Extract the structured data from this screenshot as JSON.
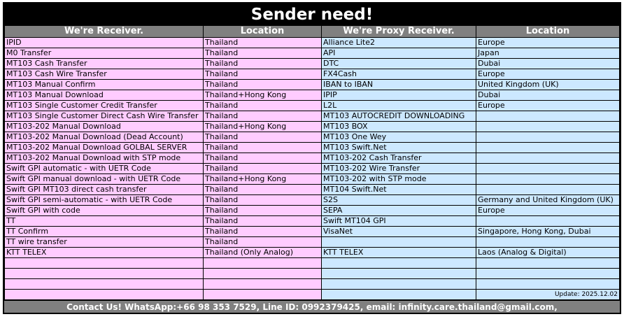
{
  "title": "Sender need!",
  "headers": [
    "We're Receiver.",
    "Location",
    "We're Proxy Receiver.",
    "Location"
  ],
  "rows": [
    [
      "IPID",
      "Thailand",
      "Alliance Lite2",
      "Europe"
    ],
    [
      "M0 Transfer",
      "Thailand",
      "API",
      "Japan"
    ],
    [
      "MT103 Cash Transfer",
      "Thailand",
      "DTC",
      "Dubai"
    ],
    [
      "MT103 Cash Wire Transfer",
      "Thailand",
      "FX4Cash",
      "Europe"
    ],
    [
      "MT103 Manual Confirm",
      "Thailand",
      "IBAN to IBAN",
      "United Kingdom (UK)"
    ],
    [
      "MT103 Manual Download",
      "Thailand+Hong Kong",
      "IPIP",
      "Dubai"
    ],
    [
      "MT103 Single Customer Credit Transfer",
      "Thailand",
      "L2L",
      "Europe"
    ],
    [
      "MT103 Single Customer Direct Cash Wire Transfer",
      "Thailand",
      "MT103 AUTOCREDIT DOWNLOADING",
      ""
    ],
    [
      "MT103-202 Manual Download",
      "Thailand+Hong Kong",
      "MT103 BOX",
      ""
    ],
    [
      "MT103-202 Manual Download (Dead Account)",
      "Thailand",
      "MT103 One Wey",
      ""
    ],
    [
      "MT103-202 Manual Download GOLBAL SERVER",
      "Thailand",
      "MT103 Swift.Net",
      ""
    ],
    [
      "MT103-202 Manual Download with STP mode",
      "Thailand",
      "MT103-202 Cash Transfer",
      ""
    ],
    [
      "Swift GPI automatic - with UETR Code",
      "Thailand",
      "MT103-202 Wire Transfer",
      ""
    ],
    [
      "Swift GPI manual download - with UETR Code",
      "Thailand+Hong Kong",
      "MT103-202 with STP mode",
      ""
    ],
    [
      "Swift GPI MT103 direct cash transfer",
      "Thailand",
      "MT104 Swift.Net",
      ""
    ],
    [
      "Swift GPI semi-automatic - with UETR Code",
      "Thailand",
      "S2S",
      "Germany and United Kingdom (UK)"
    ],
    [
      "Swift GPI with code",
      "Thailand",
      "SEPA",
      "Europe"
    ],
    [
      "TT",
      "Thailand",
      "Swift MT104 GPI",
      ""
    ],
    [
      "TT Confirm",
      "Thailand",
      "VisaNet",
      "Singapore, Hong Kong, Dubai"
    ],
    [
      "TT wire transfer",
      "Thailand",
      "",
      ""
    ],
    [
      "KTT TELEX",
      "Thailand (Only Analog)",
      "KTT TELEX",
      "Laos (Analog & Digital)"
    ],
    [
      "",
      "",
      "",
      ""
    ],
    [
      "",
      "",
      "",
      ""
    ],
    [
      "",
      "",
      "",
      ""
    ],
    [
      "",
      "",
      "",
      ""
    ]
  ],
  "update_note": "Update: 2025.12.02",
  "footer": "Contact Us! WhatsApp:+66 98 353 7529, Line ID: 0992379425, email: infinity.care.thailand@gmail.com,  https://www.thailifeplc.com",
  "colors": {
    "receiver_bg": "#ffccff",
    "proxy_bg": "#cce8ff",
    "header_bg": "#808080",
    "title_bg": "#000000"
  }
}
